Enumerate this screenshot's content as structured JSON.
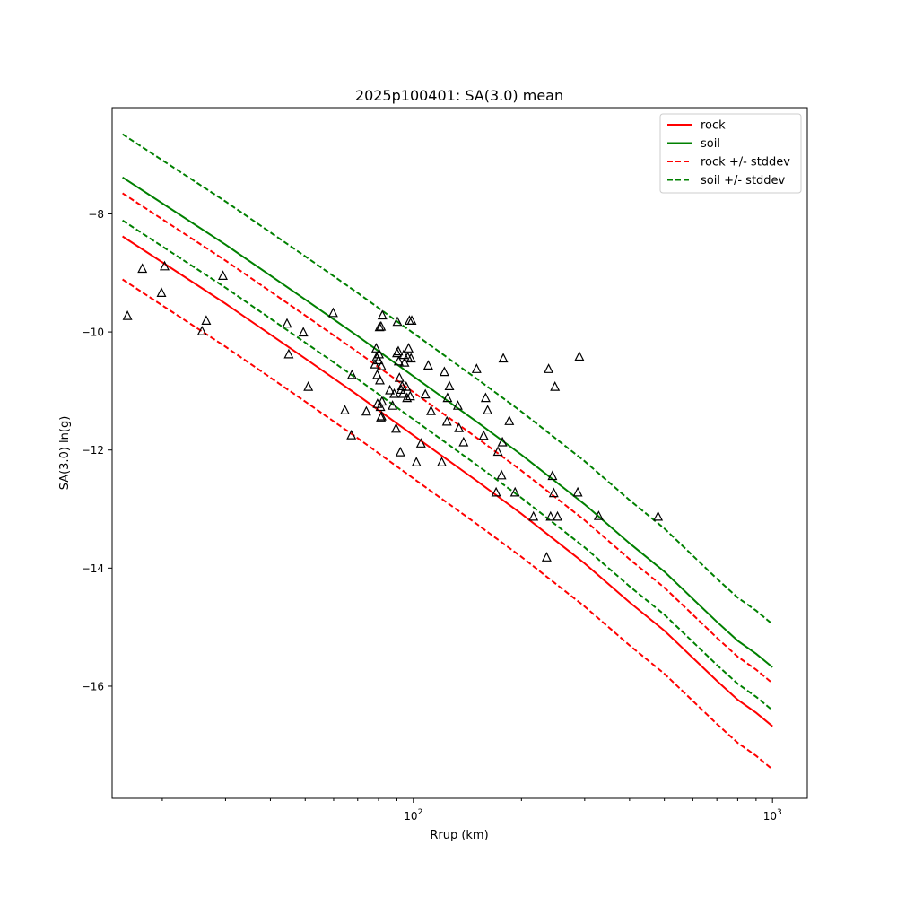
{
  "chart_data": {
    "type": "scatter",
    "title": "2025p100401: SA(3.0) mean",
    "xlabel": "Rrup (km)",
    "ylabel": "SA(3.0) ln(g)",
    "xscale": "log",
    "xlim": [
      14.5,
      1250
    ],
    "ylim": [
      -17.9,
      -6.2
    ],
    "x_ticks": [
      100,
      1000
    ],
    "y_ticks": [
      -16,
      -14,
      -12,
      -10,
      -8
    ],
    "grid": false,
    "legend_position": "top-right",
    "colors": {
      "rock": "#ff0000",
      "soil": "#008000",
      "observations": "#000000"
    },
    "series": [
      {
        "name": "rock",
        "style": "solid",
        "color": "#ff0000",
        "x": [
          15.5,
          20,
          30,
          50,
          70,
          100,
          150,
          200,
          300,
          400,
          500,
          600,
          700,
          800,
          900,
          1000
        ],
        "y": [
          -8.38,
          -8.82,
          -9.52,
          -10.45,
          -11.07,
          -11.75,
          -12.52,
          -13.08,
          -13.92,
          -14.58,
          -15.06,
          -15.52,
          -15.91,
          -16.23,
          -16.45,
          -16.68
        ]
      },
      {
        "name": "soil",
        "style": "solid",
        "color": "#008000",
        "x": [
          15.5,
          20,
          30,
          50,
          70,
          100,
          150,
          200,
          300,
          400,
          500,
          600,
          700,
          800,
          900,
          1000
        ],
        "y": [
          -7.38,
          -7.82,
          -8.52,
          -9.45,
          -10.07,
          -10.75,
          -11.52,
          -12.08,
          -12.92,
          -13.58,
          -14.06,
          -14.52,
          -14.91,
          -15.23,
          -15.45,
          -15.68
        ]
      },
      {
        "name": "rock +/- stddev",
        "style": "dashed",
        "color": "#ff0000",
        "x": [
          15.5,
          20,
          30,
          50,
          70,
          100,
          150,
          200,
          300,
          400,
          500,
          600,
          700,
          800,
          900,
          1000
        ],
        "y": [
          -7.65,
          -8.09,
          -8.79,
          -9.72,
          -10.34,
          -11.02,
          -11.79,
          -12.35,
          -13.19,
          -13.85,
          -14.33,
          -14.79,
          -15.18,
          -15.5,
          -15.72,
          -15.95
        ],
        "y2": [
          -9.11,
          -9.55,
          -10.25,
          -11.18,
          -11.8,
          -12.48,
          -13.25,
          -13.81,
          -14.65,
          -15.31,
          -15.79,
          -16.25,
          -16.64,
          -16.96,
          -17.18,
          -17.41
        ]
      },
      {
        "name": "soil +/- stddev",
        "style": "dashed",
        "color": "#008000",
        "x": [
          15.5,
          20,
          30,
          50,
          70,
          100,
          150,
          200,
          300,
          400,
          500,
          600,
          700,
          800,
          900,
          1000
        ],
        "y": [
          -6.65,
          -7.09,
          -7.79,
          -8.72,
          -9.34,
          -10.02,
          -10.79,
          -11.35,
          -12.19,
          -12.85,
          -13.33,
          -13.79,
          -14.18,
          -14.5,
          -14.72,
          -14.95
        ],
        "y2": [
          -8.11,
          -8.55,
          -9.25,
          -10.18,
          -10.8,
          -11.48,
          -12.25,
          -12.81,
          -13.65,
          -14.31,
          -14.79,
          -15.25,
          -15.64,
          -15.96,
          -16.18,
          -16.41
        ]
      }
    ],
    "observations": [
      [
        16.0,
        -9.73
      ],
      [
        17.6,
        -8.93
      ],
      [
        19.9,
        -9.34
      ],
      [
        20.3,
        -8.89
      ],
      [
        25.8,
        -9.99
      ],
      [
        26.5,
        -9.81
      ],
      [
        29.5,
        -9.05
      ],
      [
        44.5,
        -9.86
      ],
      [
        45.0,
        -10.38
      ],
      [
        49.4,
        -10.01
      ],
      [
        51.0,
        -10.93
      ],
      [
        59.8,
        -9.68
      ],
      [
        64.5,
        -11.33
      ],
      [
        67.2,
        -11.75
      ],
      [
        67.5,
        -10.73
      ],
      [
        74.0,
        -11.35
      ],
      [
        78.2,
        -10.55
      ],
      [
        78.8,
        -10.28
      ],
      [
        79.0,
        -10.43
      ],
      [
        79.3,
        -10.73
      ],
      [
        79.5,
        -11.22
      ],
      [
        80.0,
        -10.48
      ],
      [
        80.3,
        -10.38
      ],
      [
        80.5,
        -9.92
      ],
      [
        80.7,
        -10.82
      ],
      [
        81.0,
        -11.27
      ],
      [
        81.2,
        -11.45
      ],
      [
        81.3,
        -9.91
      ],
      [
        81.5,
        -10.58
      ],
      [
        81.6,
        -11.43
      ],
      [
        81.8,
        -11.18
      ],
      [
        82.0,
        -9.72
      ],
      [
        86.0,
        -10.99
      ],
      [
        87.5,
        -11.25
      ],
      [
        88.5,
        -11.05
      ],
      [
        89.5,
        -11.64
      ],
      [
        90.0,
        -10.36
      ],
      [
        90.3,
        -9.83
      ],
      [
        90.8,
        -10.33
      ],
      [
        91.0,
        -10.5
      ],
      [
        91.5,
        -10.78
      ],
      [
        92.0,
        -12.04
      ],
      [
        92.5,
        -10.98
      ],
      [
        93.0,
        -10.92
      ],
      [
        93.5,
        -11.05
      ],
      [
        94.0,
        -10.39
      ],
      [
        94.5,
        -10.52
      ],
      [
        95.5,
        -10.93
      ],
      [
        96.0,
        -11.12
      ],
      [
        96.5,
        -10.43
      ],
      [
        97.0,
        -10.28
      ],
      [
        97.5,
        -9.81
      ],
      [
        98.0,
        -11.09
      ],
      [
        98.5,
        -10.45
      ],
      [
        99.0,
        -9.81
      ],
      [
        102.0,
        -12.21
      ],
      [
        105.0,
        -11.89
      ],
      [
        108.0,
        -11.06
      ],
      [
        110.0,
        -10.57
      ],
      [
        112.0,
        -11.34
      ],
      [
        120.0,
        -12.21
      ],
      [
        122.0,
        -10.68
      ],
      [
        124.0,
        -11.52
      ],
      [
        124.5,
        -11.12
      ],
      [
        126.0,
        -10.92
      ],
      [
        133.0,
        -11.25
      ],
      [
        134.0,
        -11.63
      ],
      [
        138.0,
        -11.87
      ],
      [
        150.0,
        -10.63
      ],
      [
        157.0,
        -11.76
      ],
      [
        159.0,
        -11.12
      ],
      [
        161.0,
        -11.33
      ],
      [
        170.0,
        -12.72
      ],
      [
        172.0,
        -12.03
      ],
      [
        176.0,
        -12.43
      ],
      [
        177.0,
        -11.87
      ],
      [
        178.0,
        -10.45
      ],
      [
        185.0,
        -11.51
      ],
      [
        192.0,
        -12.72
      ],
      [
        216.0,
        -13.13
      ],
      [
        235.0,
        -13.82
      ],
      [
        238.0,
        -10.63
      ],
      [
        241.0,
        -13.13
      ],
      [
        244.0,
        -12.44
      ],
      [
        246.0,
        -12.73
      ],
      [
        248.0,
        -10.93
      ],
      [
        252.0,
        -13.13
      ],
      [
        287.0,
        -12.72
      ],
      [
        290.0,
        -10.42
      ],
      [
        328.0,
        -13.12
      ],
      [
        480.0,
        -13.13
      ]
    ]
  }
}
